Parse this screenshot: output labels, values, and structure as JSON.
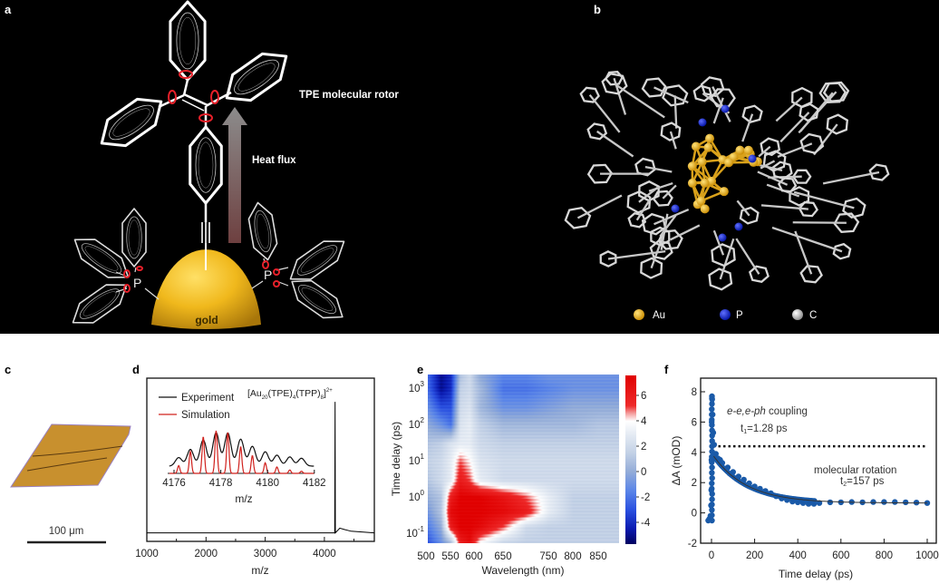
{
  "panels": {
    "a": {
      "label": "a",
      "rotor_label": "TPE molecular rotor",
      "arrow_label": "Heat flux",
      "gold_label": "gold",
      "p_left": "P",
      "p_right": "P"
    },
    "b": {
      "label": "b",
      "legend": [
        {
          "label": "Au",
          "color": "#e8a317"
        },
        {
          "label": "P",
          "color": "#1020d0"
        },
        {
          "label": "C",
          "color": "#c8c8c8"
        }
      ]
    },
    "c": {
      "label": "c",
      "scale_bar": "100 μm",
      "crystal_color": "#c8902e"
    },
    "d": {
      "label": "d"
    },
    "e": {
      "label": "e"
    },
    "f": {
      "label": "f"
    }
  },
  "chart_data": [
    {
      "panel": "d",
      "type": "line",
      "xlabel": "m/z",
      "xlim": [
        1000,
        4840
      ],
      "xticks": [
        "1000",
        "2000",
        "3000",
        "4000"
      ],
      "annotation": {
        "open": "[Au",
        "n_au": "20",
        "l1": "(TPE)",
        "n_l1": "4",
        "l2": "(TPP)",
        "n_l2": "8",
        "close": "]",
        "charge": "2+"
      },
      "series": [
        {
          "name": "spectrum",
          "color": "#000000",
          "x": [
            1000,
            4100,
            4175,
            4180,
            4185,
            4260,
            4350,
            4450,
            4840
          ],
          "y": [
            0.02,
            0.02,
            0.02,
            0.86,
            0.02,
            0.05,
            0.04,
            0.03,
            0.02
          ]
        }
      ],
      "inset": {
        "xlabel": "m/z",
        "xlim": [
          4176,
          4182
        ],
        "xticks": [
          "4176",
          "4178",
          "4180",
          "4182"
        ],
        "legend": [
          {
            "name": "Experiment",
            "color": "#111111"
          },
          {
            "name": "Simulation",
            "color": "#d0201c"
          }
        ],
        "peak_mz": [
          4176.2,
          4176.7,
          4177.25,
          4177.8,
          4178.3,
          4178.85,
          4179.35,
          4179.9,
          4180.4,
          4180.95,
          4181.45
        ],
        "simulation": [
          0.18,
          0.51,
          0.86,
          1.0,
          0.96,
          0.63,
          0.42,
          0.25,
          0.15,
          0.08,
          0.05
        ],
        "experiment": [
          0.25,
          0.49,
          0.77,
          0.98,
          0.97,
          0.79,
          0.58,
          0.42,
          0.32,
          0.27,
          0.23
        ]
      }
    },
    {
      "panel": "e",
      "type": "heatmap",
      "xlabel": "Wavelength (nm)",
      "ylabel": "Time delay (ps)",
      "xticks": [
        "500",
        "550",
        "600",
        "650",
        "750",
        "800",
        "850"
      ],
      "yscale": "log",
      "yticks": [
        {
          "base": "10",
          "exp": "3"
        },
        {
          "base": "10",
          "exp": "2"
        },
        {
          "base": "10",
          "exp": "1"
        },
        {
          "base": "10",
          "exp": "0"
        },
        {
          "base": "10",
          "exp": "-1"
        }
      ],
      "colorbar": {
        "range": [
          -5.7,
          7.6
        ],
        "ticks": [
          "6",
          "4",
          "2",
          "0",
          "-2",
          "-4"
        ],
        "colormap": "blue-white-red"
      },
      "wavelengths": [
        500,
        530,
        550,
        570,
        590,
        610,
        650,
        700,
        750,
        800,
        850,
        880
      ],
      "delays": [
        0.06,
        0.15,
        0.4,
        1,
        3,
        10,
        30,
        100,
        300,
        1000,
        2000
      ],
      "values": [
        [
          -3,
          -1,
          1,
          6,
          7,
          4,
          2,
          1.5,
          1.5,
          1.5,
          1.5,
          1.5
        ],
        [
          -2,
          0,
          6,
          7.5,
          7.5,
          7,
          5,
          2,
          1.5,
          1.5,
          1.5,
          1.5
        ],
        [
          -1,
          1,
          7,
          7.5,
          7.5,
          7.5,
          7,
          6,
          3,
          1.5,
          1.5,
          1.5
        ],
        [
          0,
          1,
          6,
          7.5,
          7.5,
          7.5,
          6.5,
          5,
          3,
          1.5,
          1.5,
          1.5
        ],
        [
          1,
          2,
          3,
          6,
          5,
          3,
          2,
          2,
          2,
          2,
          2,
          2
        ],
        [
          1.5,
          2,
          3,
          5,
          4,
          2.5,
          2,
          2,
          2,
          2,
          2,
          2
        ],
        [
          1,
          1.5,
          2.5,
          3,
          3,
          2,
          1.5,
          1.5,
          1.5,
          1.5,
          1.5,
          1.5
        ],
        [
          0,
          -1,
          -2,
          2.5,
          3,
          1.5,
          0.5,
          0.5,
          0.5,
          0.5,
          1,
          1
        ],
        [
          -1,
          -3,
          -3,
          2,
          2.5,
          0.5,
          -1,
          -1,
          -0.5,
          0,
          0,
          0
        ],
        [
          -2,
          -5,
          -4,
          1.5,
          2,
          0.5,
          -2,
          -2,
          -1.5,
          -1,
          -1,
          -1
        ],
        [
          -2,
          -5,
          -4,
          1,
          2,
          0,
          -1.5,
          -1.5,
          -1,
          -1,
          -1,
          -1
        ]
      ]
    },
    {
      "panel": "f",
      "type": "scatter",
      "xlabel": "Time delay (ps)",
      "ylabel": "ΔA (mOD)",
      "xlim": [
        -50,
        1000
      ],
      "ylim": [
        -2,
        9
      ],
      "xticks": [
        "0",
        "200",
        "400",
        "600",
        "800",
        "1000"
      ],
      "yticks": [
        "8",
        "6",
        "4",
        "2",
        "0",
        "-2"
      ],
      "point_color": "#1a5aa8",
      "threshold_line": 4.4,
      "annotations": {
        "fast_italic": "e-e,e-ph",
        "fast_text": " coupling",
        "t1_prefix": "t",
        "t1_sub": "1",
        "t1_value": "=1.28 ps",
        "slow_text": "molecular rotation",
        "t2_prefix": "t",
        "t2_sub": "2",
        "t2_value": "=157 ps"
      },
      "points": [
        [
          -15,
          -0.5
        ],
        [
          -10,
          -0.4
        ],
        [
          -5,
          -0.2
        ],
        [
          -2,
          0.5
        ],
        [
          -1,
          1.5
        ],
        [
          0,
          3.5
        ],
        [
          1,
          6
        ],
        [
          2,
          7.7
        ],
        [
          3,
          7.5
        ],
        [
          5,
          6.5
        ],
        [
          8,
          5.3
        ],
        [
          12,
          4.5
        ],
        [
          20,
          3.9
        ],
        [
          30,
          3.6
        ],
        [
          40,
          3.5
        ],
        [
          50,
          3.3
        ],
        [
          75,
          3.0
        ],
        [
          100,
          2.7
        ],
        [
          125,
          2.4
        ],
        [
          150,
          2.2
        ],
        [
          175,
          1.95
        ],
        [
          200,
          1.75
        ],
        [
          225,
          1.6
        ],
        [
          250,
          1.45
        ],
        [
          275,
          1.3
        ],
        [
          300,
          1.1
        ],
        [
          325,
          0.95
        ],
        [
          350,
          0.85
        ],
        [
          375,
          0.75
        ],
        [
          400,
          0.7
        ],
        [
          425,
          0.65
        ],
        [
          450,
          0.6
        ],
        [
          475,
          0.6
        ],
        [
          500,
          0.65
        ],
        [
          550,
          0.7
        ],
        [
          600,
          0.7
        ],
        [
          650,
          0.72
        ],
        [
          700,
          0.7
        ],
        [
          750,
          0.72
        ],
        [
          800,
          0.72
        ],
        [
          850,
          0.72
        ],
        [
          900,
          0.7
        ],
        [
          950,
          0.68
        ],
        [
          1000,
          0.65
        ]
      ],
      "fit": {
        "tau1_ps": 1.28,
        "tau2_ps": 157
      }
    }
  ]
}
